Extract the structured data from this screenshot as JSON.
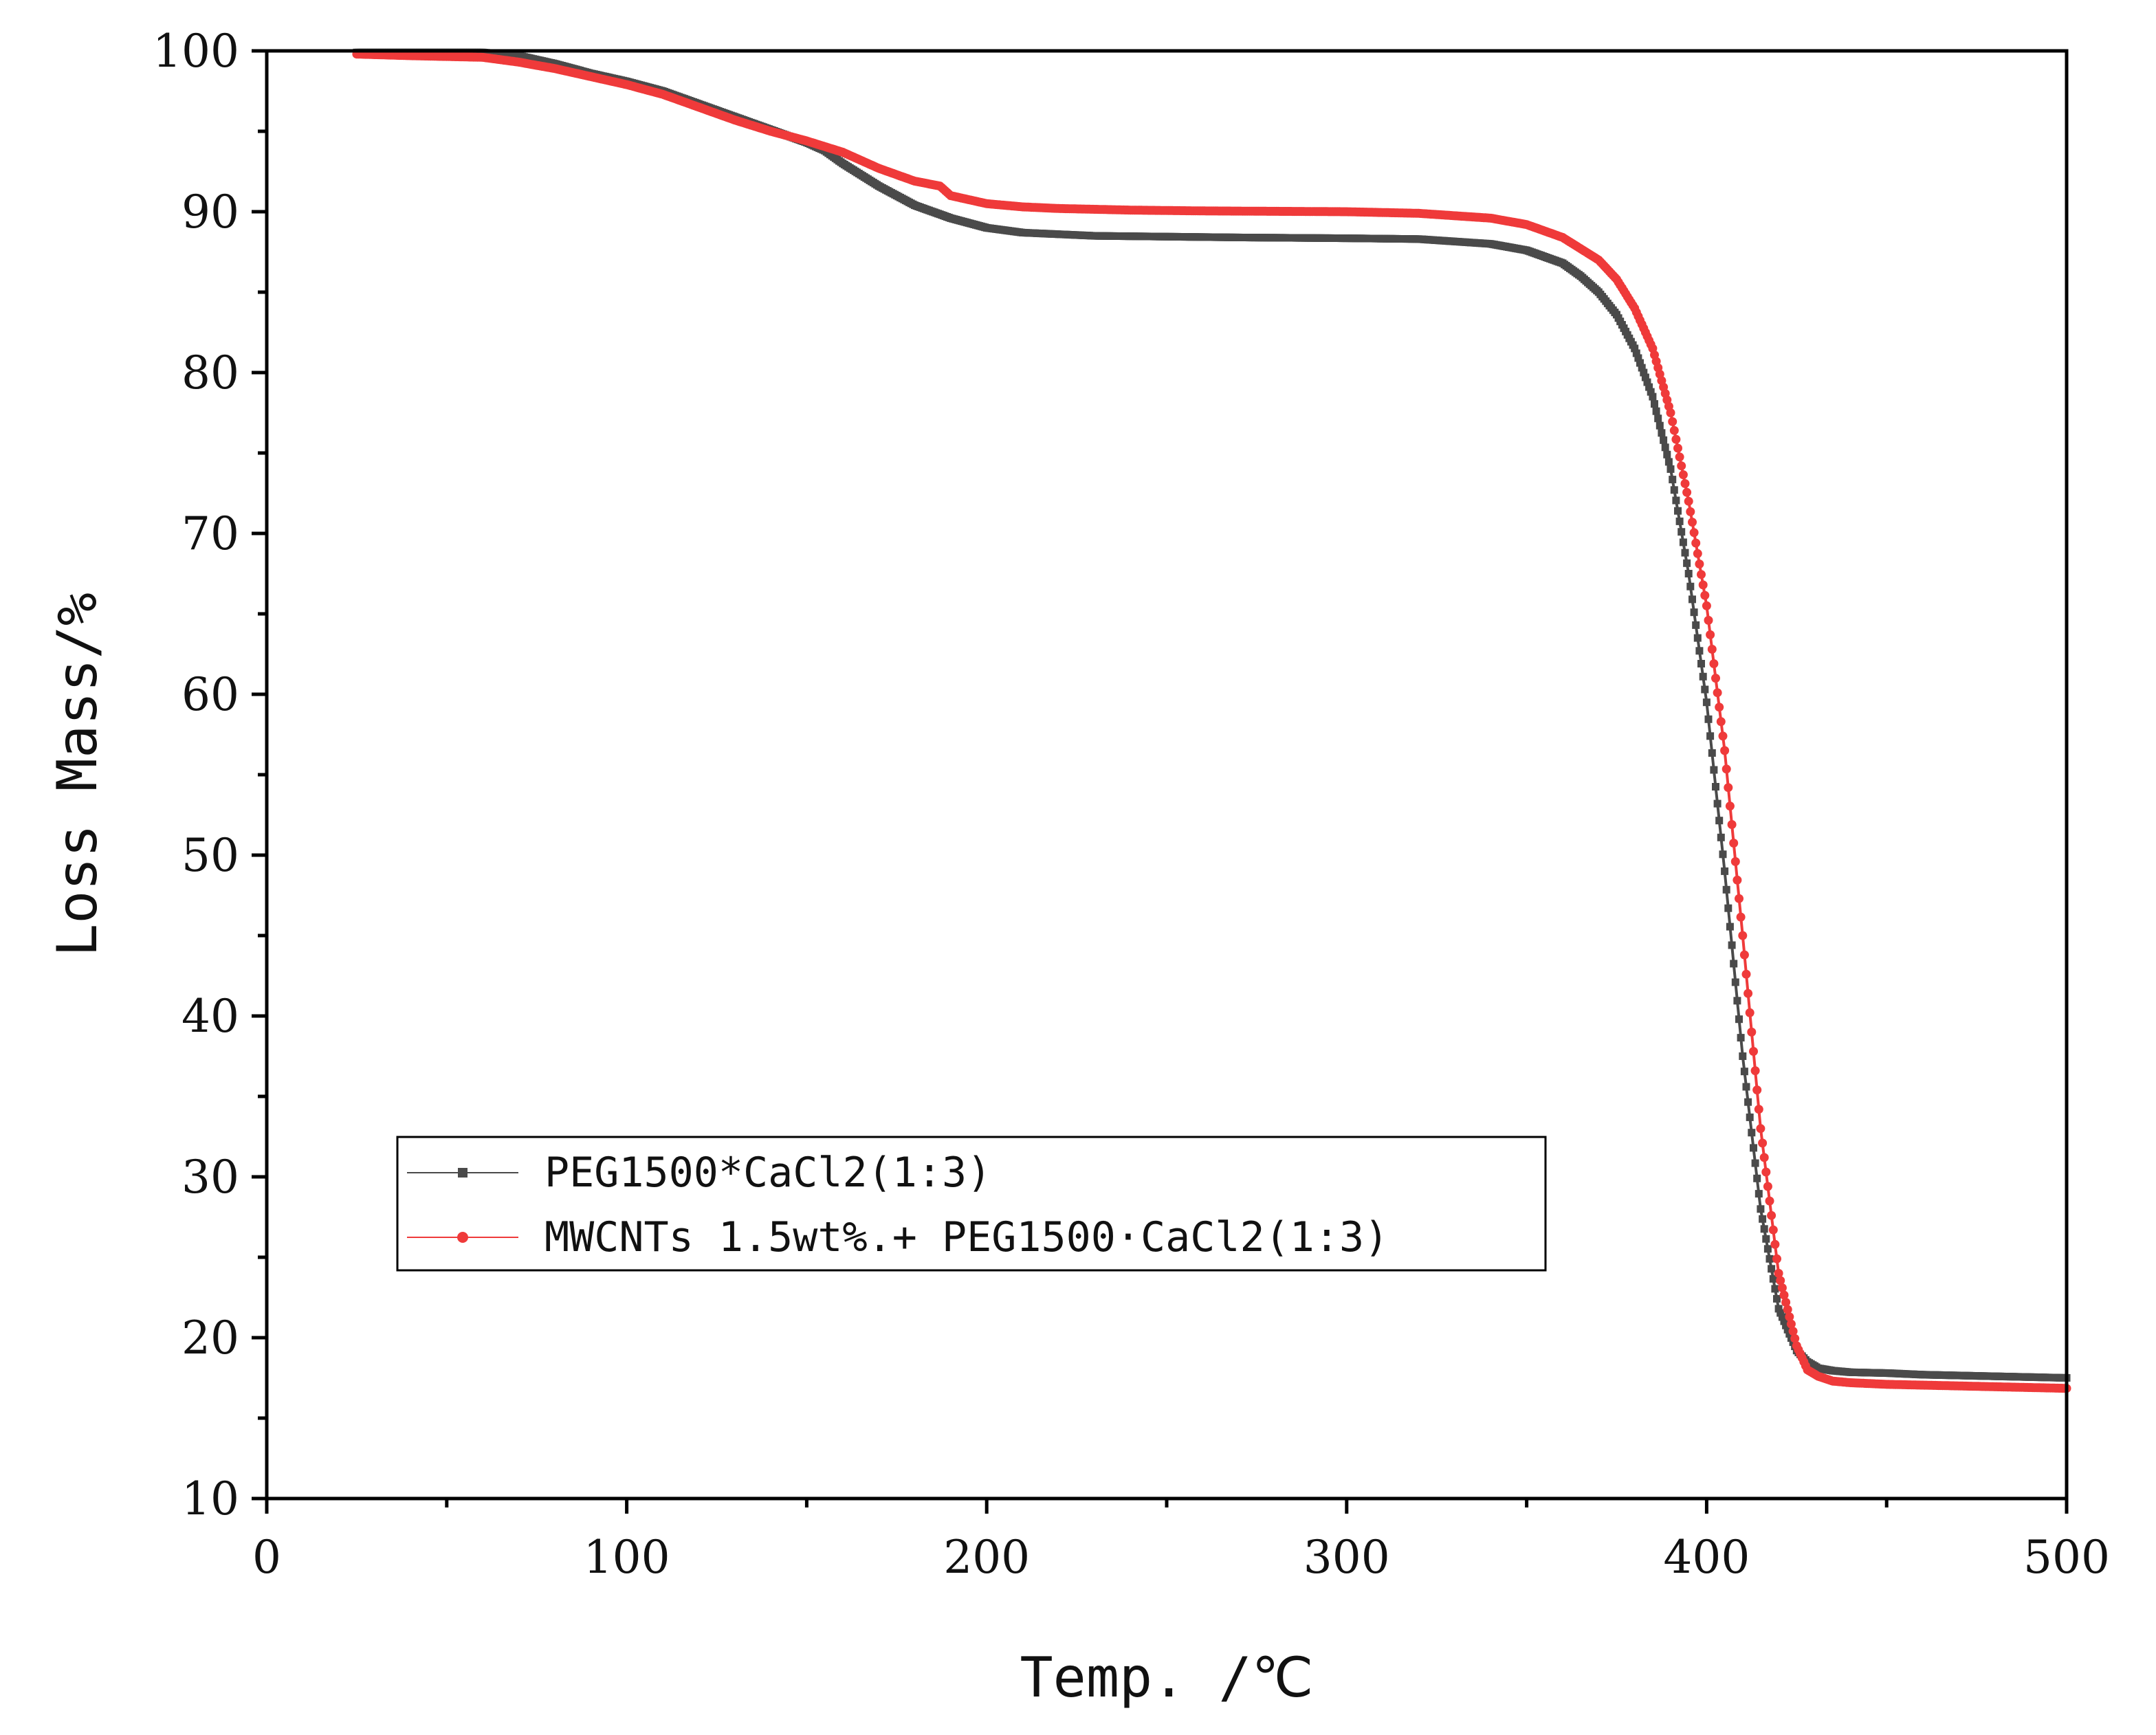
{
  "chart_data": {
    "type": "scatter",
    "title": "",
    "xlabel": "Temp. /℃",
    "ylabel": "Loss Mass/%",
    "xlim": [
      0,
      500
    ],
    "ylim": [
      10,
      100
    ],
    "xticks": [
      0,
      100,
      200,
      300,
      400,
      500
    ],
    "yticks": [
      10,
      20,
      30,
      40,
      50,
      60,
      70,
      80,
      90,
      100
    ],
    "xtick_labels": [
      "0",
      "100",
      "200",
      "300",
      "400",
      "500"
    ],
    "ytick_labels": [
      "10",
      "20",
      "30",
      "40",
      "50",
      "60",
      "70",
      "80",
      "90",
      "100"
    ],
    "grid": false,
    "legend_position": "lower-left",
    "series": [
      {
        "name": "PEG1500*CaCl2(1:3)",
        "color": "#4a4a4a",
        "marker": "square",
        "x": [
          25,
          40,
          60,
          70,
          80,
          90,
          100,
          110,
          120,
          130,
          140,
          150,
          155,
          160,
          170,
          180,
          190,
          200,
          210,
          220,
          230,
          250,
          270,
          300,
          320,
          340,
          350,
          360,
          365,
          370,
          375,
          380,
          385,
          390,
          395,
          400,
          405,
          410,
          415,
          420,
          425,
          428,
          431,
          435,
          440,
          450,
          460,
          470,
          480,
          490,
          500
        ],
        "y": [
          99.9,
          99.9,
          99.9,
          99.7,
          99.2,
          98.6,
          98.1,
          97.5,
          96.7,
          95.9,
          95.1,
          94.3,
          93.8,
          93.0,
          91.6,
          90.4,
          89.6,
          89.0,
          88.7,
          88.6,
          88.5,
          88.45,
          88.4,
          88.35,
          88.3,
          88.0,
          87.6,
          86.8,
          86.0,
          85.0,
          83.6,
          81.5,
          78.5,
          74.0,
          67.5,
          59.5,
          49.0,
          37.5,
          28.0,
          21.8,
          19.2,
          18.5,
          18.1,
          17.95,
          17.85,
          17.8,
          17.7,
          17.65,
          17.6,
          17.55,
          17.5
        ]
      },
      {
        "name": "MWCNTs 1.5wt%.+ PEG1500·CaCl2(1:3)",
        "color": "#ef3a3a",
        "marker": "circle",
        "x": [
          25,
          40,
          60,
          70,
          80,
          90,
          100,
          110,
          120,
          130,
          140,
          150,
          160,
          170,
          180,
          187,
          190,
          200,
          210,
          220,
          240,
          260,
          300,
          320,
          340,
          350,
          360,
          370,
          375,
          380,
          385,
          390,
          395,
          400,
          405,
          410,
          415,
          420,
          425,
          428,
          431,
          435,
          440,
          450,
          460,
          470,
          480,
          490,
          500
        ],
        "y": [
          99.8,
          99.7,
          99.6,
          99.3,
          98.9,
          98.4,
          97.9,
          97.3,
          96.5,
          95.7,
          95.0,
          94.4,
          93.7,
          92.7,
          91.9,
          91.6,
          91.0,
          90.5,
          90.3,
          90.2,
          90.1,
          90.05,
          90.0,
          89.9,
          89.6,
          89.2,
          88.4,
          87.0,
          85.8,
          84.0,
          81.5,
          77.5,
          72.0,
          65.5,
          56.5,
          45.0,
          33.0,
          24.0,
          19.5,
          18.0,
          17.6,
          17.3,
          17.2,
          17.1,
          17.05,
          17.0,
          16.95,
          16.9,
          16.85
        ]
      }
    ]
  }
}
